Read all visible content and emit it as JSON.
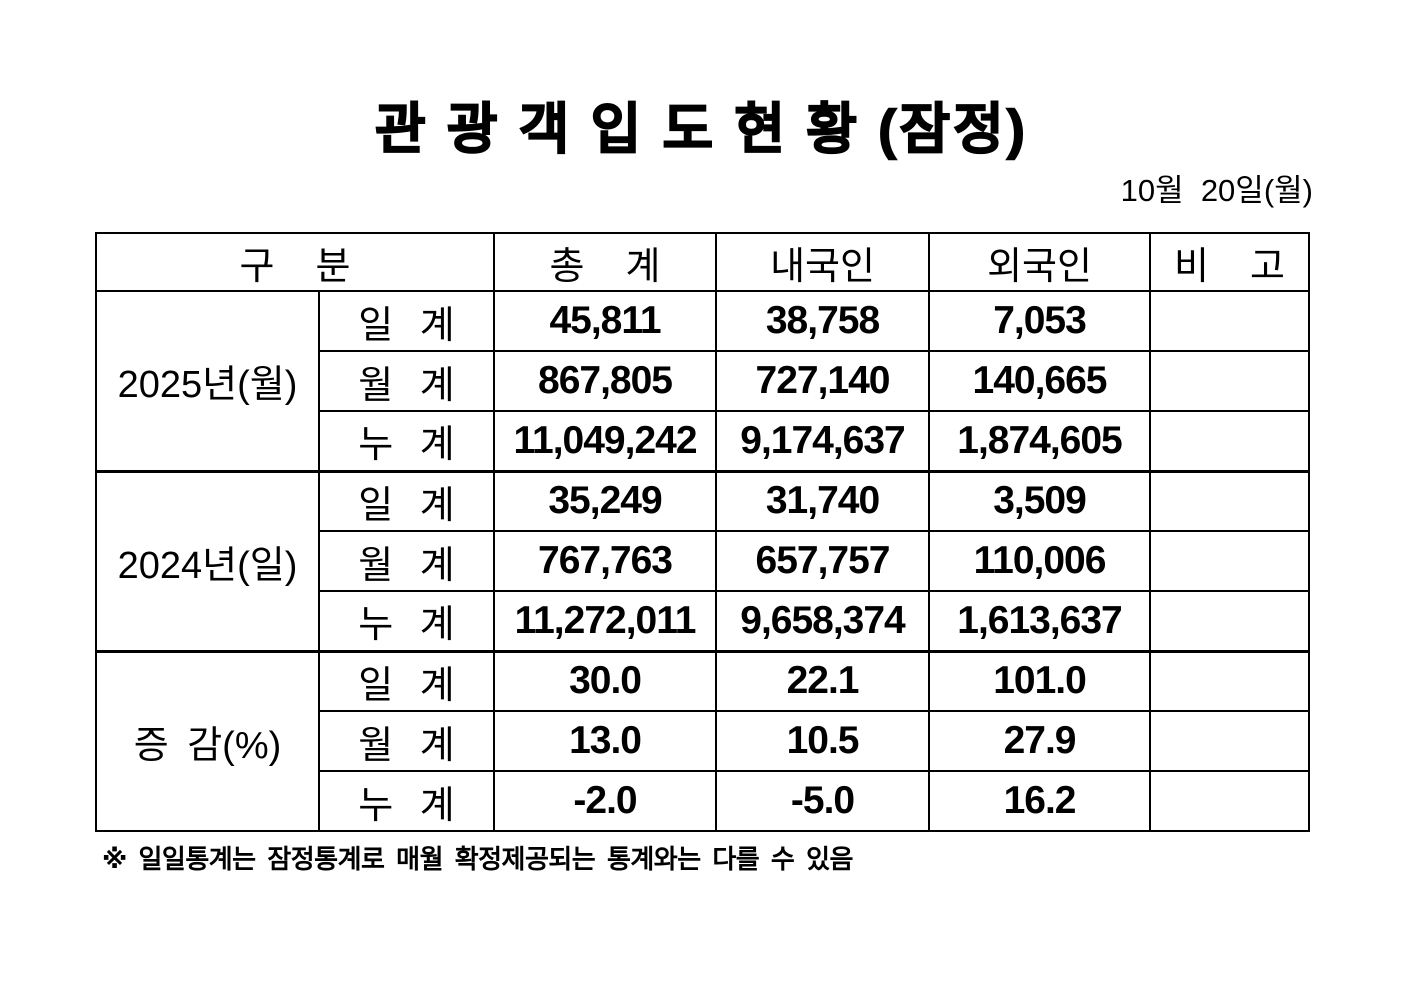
{
  "page": {
    "title": "관 광 객 입 도 현 황 (잠정)",
    "date": "10월  20일(월)",
    "footnote": "※ 일일통계는 잠정통계로 매월 확정제공되는 통계와는 다를 수 있음"
  },
  "table": {
    "headers": {
      "category": "구  분",
      "total": "총  계",
      "domestic": "내국인",
      "foreign": "외국인",
      "remarks": "비  고"
    },
    "groups": [
      {
        "label": "2025년(월)",
        "rows": [
          {
            "label": "일 계",
            "total": "45,811",
            "domestic": "38,758",
            "foreign": "7,053",
            "remarks": ""
          },
          {
            "label": "월 계",
            "total": "867,805",
            "domestic": "727,140",
            "foreign": "140,665",
            "remarks": ""
          },
          {
            "label": "누 계",
            "total": "11,049,242",
            "domestic": "9,174,637",
            "foreign": "1,874,605",
            "remarks": ""
          }
        ]
      },
      {
        "label": "2024년(일)",
        "rows": [
          {
            "label": "일 계",
            "total": "35,249",
            "domestic": "31,740",
            "foreign": "3,509",
            "remarks": ""
          },
          {
            "label": "월 계",
            "total": "767,763",
            "domestic": "657,757",
            "foreign": "110,006",
            "remarks": ""
          },
          {
            "label": "누 계",
            "total": "11,272,011",
            "domestic": "9,658,374",
            "foreign": "1,613,637",
            "remarks": ""
          }
        ]
      },
      {
        "label": "증 감(%)",
        "rows": [
          {
            "label": "일 계",
            "total": "30.0",
            "domestic": "22.1",
            "foreign": "101.0",
            "remarks": ""
          },
          {
            "label": "월 계",
            "total": "13.0",
            "domestic": "10.5",
            "foreign": "27.9",
            "remarks": ""
          },
          {
            "label": "누 계",
            "total": "-2.0",
            "domestic": "-5.0",
            "foreign": "16.2",
            "remarks": ""
          }
        ]
      }
    ]
  }
}
